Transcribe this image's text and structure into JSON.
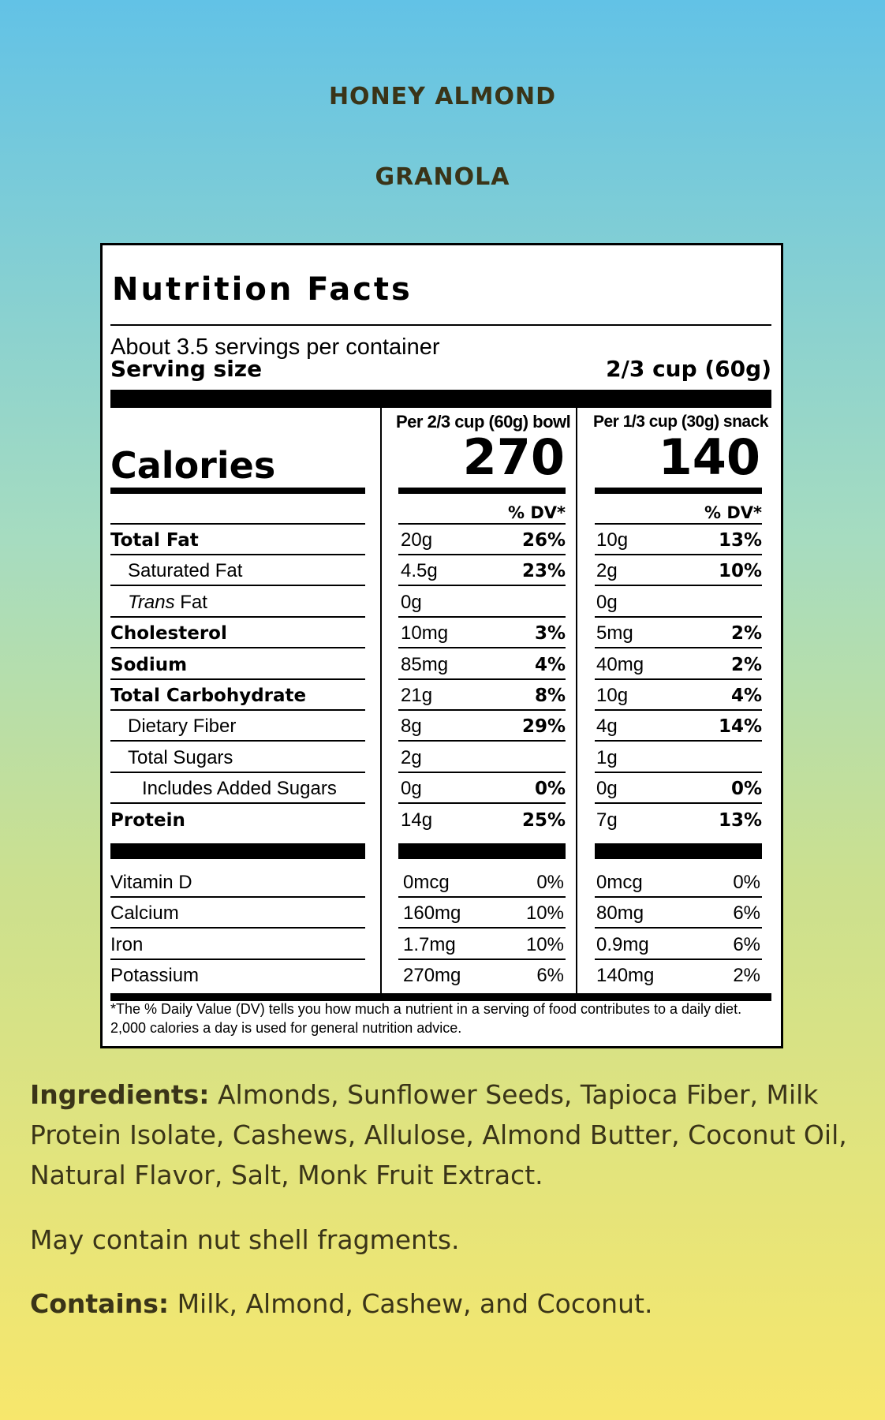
{
  "product": {
    "title_line1": "HONEY ALMOND",
    "title_line2": "GRANOLA"
  },
  "label": {
    "heading": "Nutrition Facts",
    "servings_per_container": "About 3.5 servings per container",
    "serving_size_label": "Serving size",
    "serving_size_value": "2/3 cup (60g)",
    "calories_label": "Calories",
    "col1_header": "Per 2/3 cup (60g) bowl",
    "col2_header": "Per 1/3 cup (30g) snack",
    "col1_calories": "270",
    "col2_calories": "140",
    "dv_header": "% DV*",
    "nutrients": [
      {
        "name": "Total Fat",
        "bold": true,
        "indent": 0,
        "a1": "20g",
        "p1": "26%",
        "a2": "10g",
        "p2": "13%"
      },
      {
        "name": "Saturated Fat",
        "bold": false,
        "indent": 1,
        "a1": "4.5g",
        "p1": "23%",
        "a2": "2g",
        "p2": "10%"
      },
      {
        "name_italic": "Trans",
        "name": " Fat",
        "bold": false,
        "indent": 1,
        "a1": "0g",
        "p1": "",
        "a2": "0g",
        "p2": ""
      },
      {
        "name": "Cholesterol",
        "bold": true,
        "indent": 0,
        "a1": "10mg",
        "p1": "3%",
        "a2": "5mg",
        "p2": "2%"
      },
      {
        "name": "Sodium",
        "bold": true,
        "indent": 0,
        "a1": "85mg",
        "p1": "4%",
        "a2": "40mg",
        "p2": "2%"
      },
      {
        "name": "Total Carbohydrate",
        "bold": true,
        "indent": 0,
        "a1": "21g",
        "p1": "8%",
        "a2": "10g",
        "p2": "4%"
      },
      {
        "name": "Dietary Fiber",
        "bold": false,
        "indent": 1,
        "a1": "8g",
        "p1": "29%",
        "a2": "4g",
        "p2": "14%"
      },
      {
        "name": "Total Sugars",
        "bold": false,
        "indent": 1,
        "a1": "2g",
        "p1": "",
        "a2": "1g",
        "p2": ""
      },
      {
        "name": "Includes Added Sugars",
        "bold": false,
        "indent": 2,
        "a1": "0g",
        "p1": "0%",
        "a2": "0g",
        "p2": "0%"
      },
      {
        "name": "Protein",
        "bold": true,
        "indent": 0,
        "a1": "14g",
        "p1": "25%",
        "a2": "7g",
        "p2": "13%"
      }
    ],
    "vitamins": [
      {
        "name": "Vitamin D",
        "a1": "0mcg",
        "p1": "0%",
        "a2": "0mcg",
        "p2": "0%"
      },
      {
        "name": "Calcium",
        "a1": "160mg",
        "p1": "10%",
        "a2": "80mg",
        "p2": "6%"
      },
      {
        "name": "Iron",
        "a1": "1.7mg",
        "p1": "10%",
        "a2": "0.9mg",
        "p2": "6%"
      },
      {
        "name": "Potassium",
        "a1": "270mg",
        "p1": "6%",
        "a2": "140mg",
        "p2": "2%"
      }
    ],
    "footnote": "*The % Daily Value (DV) tells you how much a nutrient in a serving of food contributes to a daily diet. 2,000 calories a day is used for general nutrition advice."
  },
  "ingredients": {
    "label": "Ingredients:",
    "text": " Almonds, Sunflower Seeds, Tapioca Fiber, Milk Protein Isolate, Cashews, Allulose, Almond Butter, Coconut Oil, Natural Flavor, Salt, Monk Fruit Extract.",
    "warning": "May contain nut shell fragments.",
    "contains_label": "Contains:",
    "contains_text": " Milk, Almond, Cashew, and Coconut."
  },
  "colors": {
    "title_text": "#3a3418",
    "gradient_top": "#62c2e6",
    "gradient_bottom": "#f7e76c"
  }
}
